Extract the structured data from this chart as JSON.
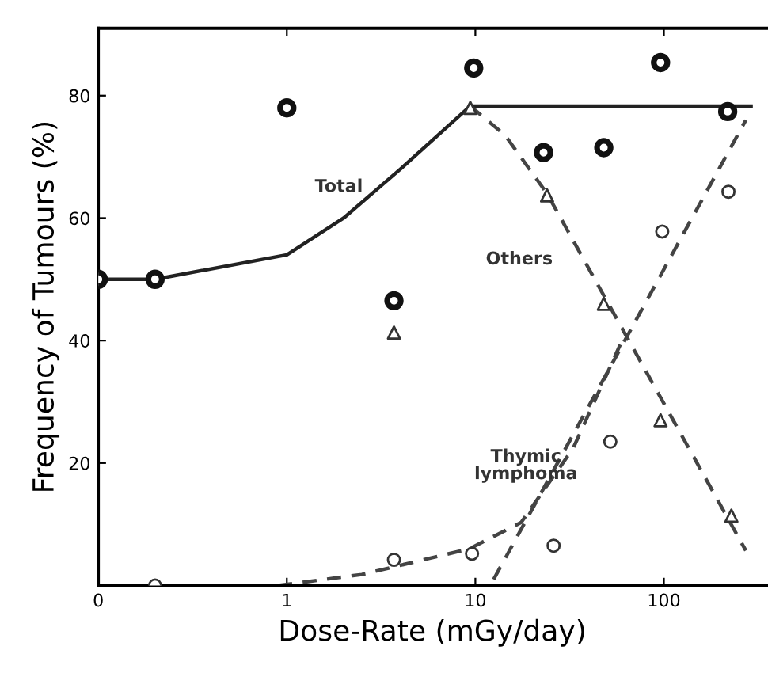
{
  "chart_data": {
    "type": "scatter",
    "xlabel": "Dose-Rate (mGy/day)",
    "ylabel": "Frequency of Tumours (%)",
    "log": "x",
    "xlim": [
      0.1,
      350
    ],
    "xticks": [
      {
        "value": 0.1,
        "label": "0"
      },
      1,
      10,
      100
    ],
    "ylim": [
      0,
      91
    ],
    "yticks": [
      20,
      40,
      60,
      80
    ],
    "grid": false,
    "legend": false,
    "series": [
      {
        "type": "line",
        "line_style": "solid",
        "color": "#222222",
        "x": [
          0.1,
          0.2,
          1,
          2,
          4,
          9.4,
          290
        ],
        "values": [
          50,
          50,
          54,
          60,
          68,
          78.3,
          78.3
        ]
      },
      {
        "type": "line",
        "line_style": "dashed",
        "color": "#444444",
        "x": [
          9.4,
          14.4,
          24,
          272
        ],
        "values": [
          78.3,
          73.5,
          64,
          5.7
        ]
      },
      {
        "type": "line",
        "line_style": "dashed",
        "color": "#444444",
        "x": [
          0.9,
          2.5,
          9.3,
          17.5,
          33,
          60
        ],
        "values": [
          0,
          1.8,
          6,
          10.3,
          22.4,
          40
        ]
      },
      {
        "type": "line",
        "line_style": "dashed",
        "color": "#444444",
        "x": [
          12.5,
          272
        ],
        "values": [
          1,
          76
        ]
      },
      {
        "marker": "circle",
        "color": "#111111",
        "x": [
          0.1,
          0.2,
          1,
          3.7,
          9.8,
          23,
          48,
          96,
          218
        ],
        "values": [
          50,
          50,
          78,
          46.5,
          84.5,
          70.7,
          71.5,
          85.4,
          77.4
        ]
      },
      {
        "marker": "triangle",
        "color": "#333333",
        "x": [
          3.7,
          9.4,
          24,
          48,
          96,
          228
        ],
        "values": [
          41.3,
          78,
          63.7,
          46,
          27,
          11.4
        ]
      },
      {
        "marker": "circle",
        "color": "#333333",
        "x": [
          0.2,
          3.7,
          9.6,
          26,
          52,
          98,
          220
        ],
        "values": [
          0,
          4.2,
          5.2,
          6.5,
          23.5,
          57.8,
          64.3
        ]
      }
    ],
    "annotations": [
      "Total",
      "Others",
      "Thymic\nlymphoma"
    ]
  }
}
